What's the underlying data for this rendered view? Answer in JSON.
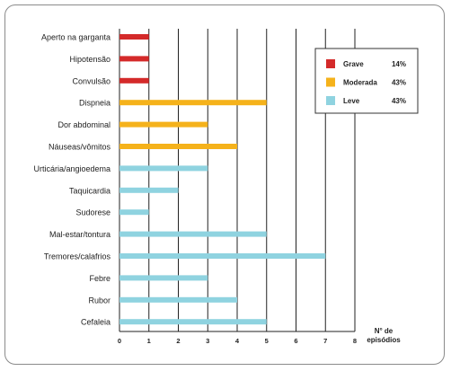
{
  "chart_data": {
    "type": "bar",
    "orientation": "horizontal",
    "categories": [
      "Aperto na garganta",
      "Hipotensão",
      "Convulsão",
      "Dispneia",
      "Dor abdominal",
      "Náuseas/vômitos",
      "Urticária/angioedema",
      "Taquicardia",
      "Sudorese",
      "Mal-estar/tontura",
      "Tremores/calafrios",
      "Febre",
      "Rubor",
      "Cefaleia"
    ],
    "values": [
      1,
      1,
      1,
      5,
      3,
      4,
      3,
      2,
      1,
      5,
      7,
      3,
      4,
      5
    ],
    "severity": [
      "Grave",
      "Grave",
      "Grave",
      "Moderada",
      "Moderada",
      "Moderada",
      "Leve",
      "Leve",
      "Leve",
      "Leve",
      "Leve",
      "Leve",
      "Leve",
      "Leve"
    ],
    "xlim": [
      0,
      8
    ],
    "xticks": [
      "0",
      "1",
      "2",
      "3",
      "4",
      "5",
      "6",
      "7",
      "8"
    ],
    "xlabel_lines": [
      "N° de",
      "episódios"
    ],
    "ylabel": "",
    "grid": "vertical",
    "legend_position": "top-right",
    "legend": [
      {
        "name": "Grave",
        "pct": "14%",
        "color": "#d42a2a"
      },
      {
        "name": "Moderada",
        "pct": "43%",
        "color": "#f5b21b"
      },
      {
        "name": "Leve",
        "pct": "43%",
        "color": "#8fd3e0"
      }
    ]
  }
}
